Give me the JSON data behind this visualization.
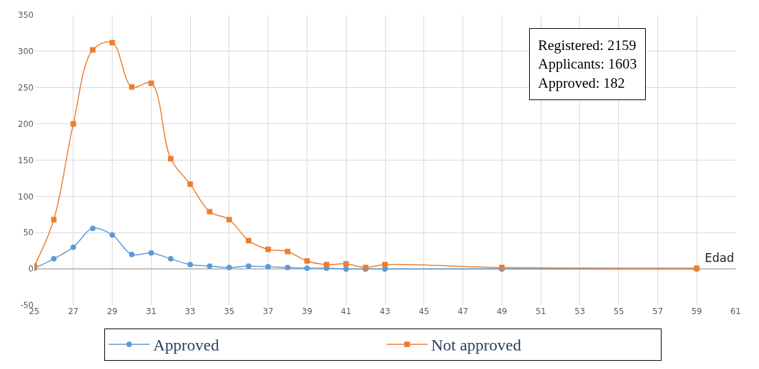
{
  "chart_data": {
    "type": "line",
    "xlabel": "Edad",
    "x": [
      25,
      26,
      27,
      28,
      29,
      30,
      31,
      32,
      33,
      34,
      35,
      36,
      37,
      38,
      39,
      40,
      41,
      42,
      43,
      49,
      59
    ],
    "series": [
      {
        "name": "Approved",
        "color": "#5b9bd5",
        "marker": "circle",
        "values": [
          1,
          14,
          30,
          56,
          47,
          20,
          22,
          14,
          6,
          4,
          2,
          4,
          3,
          2,
          1,
          1,
          0,
          0,
          0,
          0,
          0
        ]
      },
      {
        "name": "Not approved",
        "color": "#ed7d31",
        "marker": "square",
        "values": [
          4,
          68,
          200,
          302,
          312,
          251,
          256,
          152,
          117,
          79,
          68,
          39,
          27,
          24,
          11,
          6,
          7,
          2,
          6,
          2,
          1
        ]
      }
    ],
    "xlim": [
      25,
      61
    ],
    "xticks": [
      25,
      27,
      29,
      31,
      33,
      35,
      37,
      39,
      41,
      43,
      45,
      47,
      49,
      51,
      53,
      55,
      57,
      59,
      61
    ],
    "ylim": [
      -50,
      350
    ],
    "yticks": [
      -50,
      0,
      50,
      100,
      150,
      200,
      250,
      300,
      350
    ],
    "grid": true,
    "legend": "bottom",
    "annotations": [
      "Registered: 2159\nApplicants: 1603\nApproved: 182"
    ]
  }
}
